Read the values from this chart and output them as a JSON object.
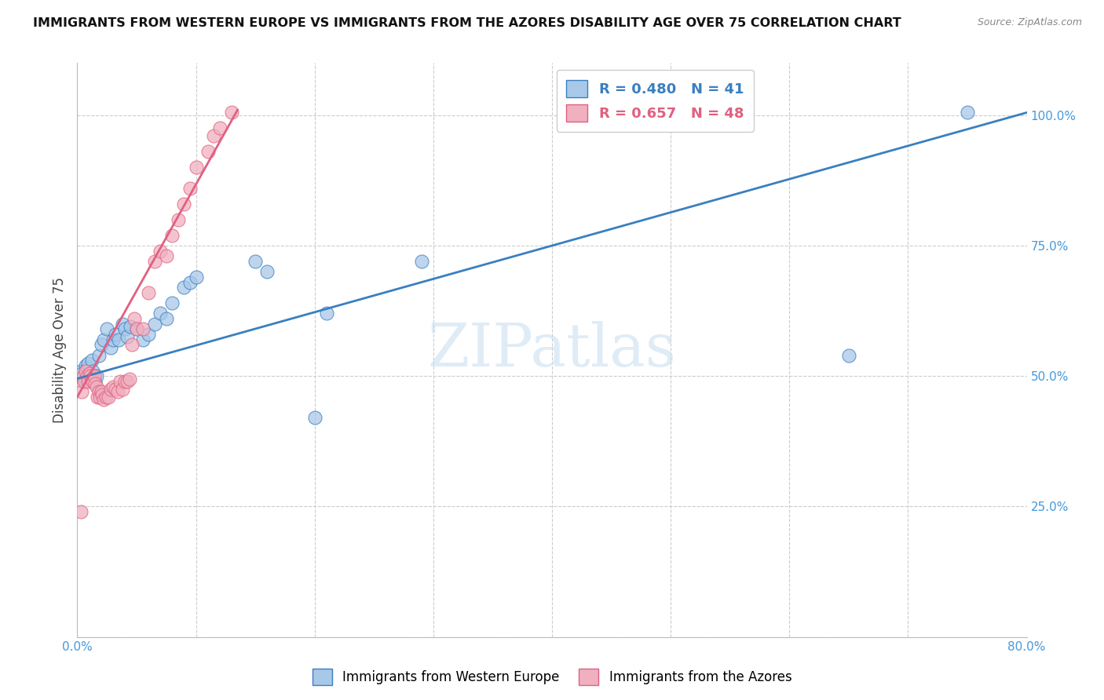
{
  "title": "IMMIGRANTS FROM WESTERN EUROPE VS IMMIGRANTS FROM THE AZORES DISABILITY AGE OVER 75 CORRELATION CHART",
  "source": "Source: ZipAtlas.com",
  "ylabel": "Disability Age Over 75",
  "legend_label_blue": "Immigrants from Western Europe",
  "legend_label_pink": "Immigrants from the Azores",
  "R_blue": 0.48,
  "N_blue": 41,
  "R_pink": 0.657,
  "N_pink": 48,
  "xlim": [
    0.0,
    0.8
  ],
  "ylim": [
    0.0,
    1.1
  ],
  "xticks": [
    0.0,
    0.1,
    0.2,
    0.3,
    0.4,
    0.5,
    0.6,
    0.7,
    0.8
  ],
  "xtick_labels": [
    "0.0%",
    "",
    "",
    "",
    "",
    "",
    "",
    "",
    "80.0%"
  ],
  "yticks": [
    0.0,
    0.25,
    0.5,
    0.75,
    1.0
  ],
  "ytick_labels": [
    "",
    "25.0%",
    "50.0%",
    "75.0%",
    "100.0%"
  ],
  "watermark": "ZIPatlas",
  "blue_color": "#a8c8e8",
  "pink_color": "#f0b0c0",
  "trend_blue": "#3a7fc1",
  "trend_pink": "#e06080",
  "background": "#ffffff",
  "grid_color": "#cccccc",
  "blue_scatter": [
    [
      0.003,
      0.51
    ],
    [
      0.004,
      0.505
    ],
    [
      0.005,
      0.495
    ],
    [
      0.006,
      0.5
    ],
    [
      0.007,
      0.52
    ],
    [
      0.008,
      0.515
    ],
    [
      0.009,
      0.525
    ],
    [
      0.01,
      0.505
    ],
    [
      0.012,
      0.53
    ],
    [
      0.013,
      0.51
    ],
    [
      0.015,
      0.49
    ],
    [
      0.016,
      0.5
    ],
    [
      0.018,
      0.54
    ],
    [
      0.02,
      0.56
    ],
    [
      0.022,
      0.57
    ],
    [
      0.025,
      0.59
    ],
    [
      0.028,
      0.555
    ],
    [
      0.03,
      0.57
    ],
    [
      0.032,
      0.58
    ],
    [
      0.035,
      0.57
    ],
    [
      0.038,
      0.6
    ],
    [
      0.04,
      0.59
    ],
    [
      0.042,
      0.575
    ],
    [
      0.045,
      0.595
    ],
    [
      0.05,
      0.59
    ],
    [
      0.055,
      0.57
    ],
    [
      0.06,
      0.58
    ],
    [
      0.065,
      0.6
    ],
    [
      0.07,
      0.62
    ],
    [
      0.075,
      0.61
    ],
    [
      0.08,
      0.64
    ],
    [
      0.09,
      0.67
    ],
    [
      0.095,
      0.68
    ],
    [
      0.1,
      0.69
    ],
    [
      0.15,
      0.72
    ],
    [
      0.16,
      0.7
    ],
    [
      0.2,
      0.42
    ],
    [
      0.21,
      0.62
    ],
    [
      0.29,
      0.72
    ],
    [
      0.65,
      0.54
    ],
    [
      0.75,
      1.005
    ]
  ],
  "pink_scatter": [
    [
      0.003,
      0.24
    ],
    [
      0.004,
      0.47
    ],
    [
      0.005,
      0.5
    ],
    [
      0.006,
      0.49
    ],
    [
      0.007,
      0.51
    ],
    [
      0.008,
      0.5
    ],
    [
      0.009,
      0.49
    ],
    [
      0.01,
      0.505
    ],
    [
      0.011,
      0.5
    ],
    [
      0.012,
      0.495
    ],
    [
      0.013,
      0.49
    ],
    [
      0.014,
      0.5
    ],
    [
      0.015,
      0.485
    ],
    [
      0.016,
      0.48
    ],
    [
      0.017,
      0.46
    ],
    [
      0.018,
      0.47
    ],
    [
      0.019,
      0.46
    ],
    [
      0.02,
      0.47
    ],
    [
      0.021,
      0.465
    ],
    [
      0.022,
      0.455
    ],
    [
      0.024,
      0.46
    ],
    [
      0.026,
      0.46
    ],
    [
      0.028,
      0.475
    ],
    [
      0.03,
      0.48
    ],
    [
      0.032,
      0.475
    ],
    [
      0.034,
      0.47
    ],
    [
      0.036,
      0.49
    ],
    [
      0.038,
      0.475
    ],
    [
      0.04,
      0.49
    ],
    [
      0.042,
      0.49
    ],
    [
      0.044,
      0.495
    ],
    [
      0.046,
      0.56
    ],
    [
      0.048,
      0.61
    ],
    [
      0.05,
      0.59
    ],
    [
      0.055,
      0.59
    ],
    [
      0.06,
      0.66
    ],
    [
      0.065,
      0.72
    ],
    [
      0.07,
      0.74
    ],
    [
      0.075,
      0.73
    ],
    [
      0.08,
      0.77
    ],
    [
      0.085,
      0.8
    ],
    [
      0.09,
      0.83
    ],
    [
      0.095,
      0.86
    ],
    [
      0.1,
      0.9
    ],
    [
      0.11,
      0.93
    ],
    [
      0.115,
      0.96
    ],
    [
      0.12,
      0.975
    ],
    [
      0.13,
      1.005
    ]
  ],
  "blue_trend_x": [
    0.0,
    0.8
  ],
  "blue_trend_y": [
    0.495,
    1.005
  ],
  "pink_trend_x": [
    0.0,
    0.135
  ],
  "pink_trend_y": [
    0.46,
    1.01
  ]
}
